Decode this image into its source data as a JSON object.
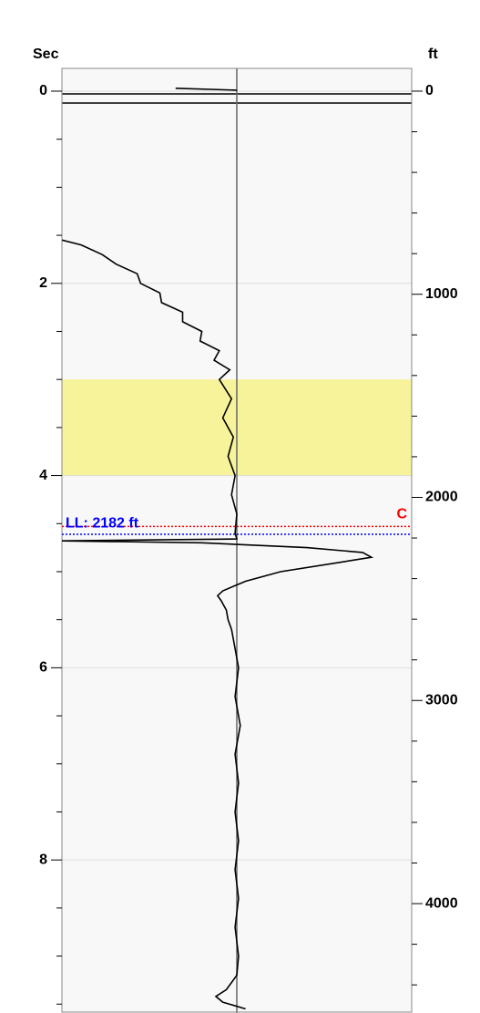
{
  "chart_data": {
    "type": "line",
    "orientation": "vertical",
    "ylabel": "Sec",
    "y2label": "ft",
    "ylim": [
      -0.237,
      9.583
    ],
    "yticks": [
      0,
      2,
      4,
      6,
      8
    ],
    "yminorticks": [
      0.5,
      1,
      1.5,
      2.5,
      3,
      3.5,
      4.5,
      5,
      5.5,
      6.5,
      7,
      7.5,
      8.5,
      9,
      9.5
    ],
    "y2lim": [
      -112,
      4534
    ],
    "y2ticks": [
      0,
      1000,
      2000,
      3000,
      4000
    ],
    "y2minorticks": [
      200,
      400,
      600,
      800,
      1200,
      1400,
      1600,
      1800,
      2200,
      2400,
      2600,
      2800,
      3200,
      3400,
      3600,
      3800,
      4200,
      4400
    ],
    "xlim": [
      -1,
      1
    ],
    "grid": true,
    "shade": {
      "from": 3,
      "to": 4,
      "color": "#f7f39a"
    },
    "markers": [
      {
        "label": "C",
        "value": 2143,
        "axis": "y2",
        "color": "#ff0000"
      },
      {
        "label": "LL: 2182 ft",
        "value": 2182,
        "axis": "y2",
        "color": "#0000ff"
      }
    ],
    "series": [
      {
        "color": "#000000",
        "x": [
          -0.03,
          -0.01,
          0.5,
          1.55,
          1.6,
          1.7,
          1.8,
          1.9,
          2.0,
          2.1,
          2.2,
          2.3,
          2.4,
          2.5,
          2.6,
          2.7,
          2.8,
          2.9,
          3.0,
          3.2,
          3.4,
          3.6,
          3.8,
          4.0,
          4.2,
          4.4,
          4.6,
          4.66,
          4.68,
          4.7,
          4.75,
          4.8,
          4.85,
          4.9,
          5.0,
          5.1,
          5.2,
          5.25,
          5.3,
          5.4,
          5.5,
          5.6,
          5.8,
          6.0,
          6.3,
          6.6,
          6.9,
          7.2,
          7.5,
          7.8,
          8.1,
          8.4,
          8.7,
          9.0,
          9.2,
          9.35,
          9.42,
          9.48,
          9.55
        ],
        "values": [
          -0.35,
          0,
          null,
          -1.0,
          -0.89,
          -0.77,
          -0.69,
          -0.57,
          -0.55,
          -0.44,
          -0.43,
          -0.31,
          -0.31,
          -0.2,
          -0.21,
          -0.1,
          -0.13,
          -0.04,
          -0.1,
          -0.03,
          -0.08,
          -0.02,
          -0.05,
          -0.01,
          -0.03,
          0,
          -0.01,
          0,
          -1.0,
          -0.2,
          0.4,
          0.72,
          0.77,
          0.6,
          0.25,
          0.05,
          -0.08,
          -0.11,
          -0.09,
          -0.06,
          -0.05,
          -0.03,
          -0.01,
          0.01,
          -0.01,
          0.02,
          -0.01,
          0.01,
          -0.01,
          0.01,
          -0.01,
          0.01,
          -0.01,
          0.01,
          0,
          -0.06,
          -0.12,
          -0.08,
          0.05
        ]
      }
    ]
  }
}
